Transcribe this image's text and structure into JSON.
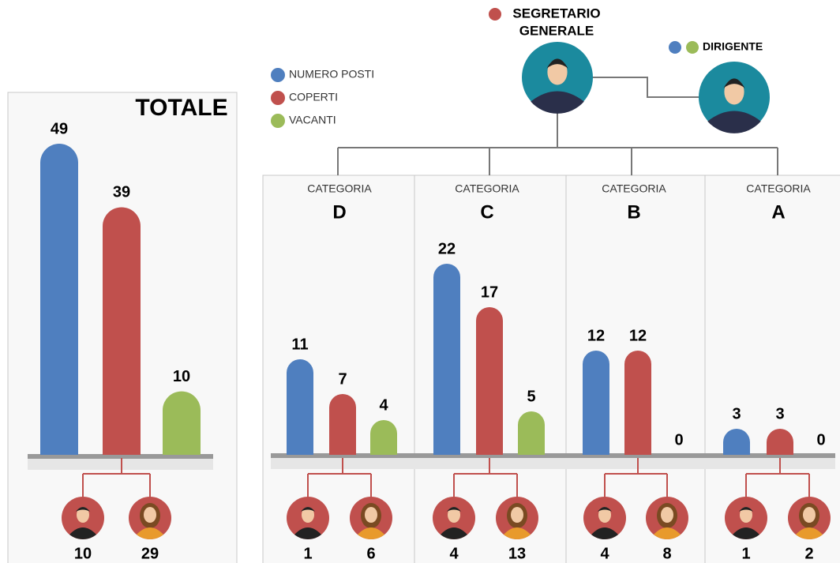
{
  "legend": [
    {
      "name": "NUMERO POSTI",
      "color": "#4f7fbf"
    },
    {
      "name": "COPERTI",
      "color": "#c0504d"
    },
    {
      "name": "VACANTI",
      "color": "#9bbb59"
    }
  ],
  "org": {
    "head": [
      "SEGRETARIO",
      "GENERALE"
    ],
    "head_colors": [
      "#c0504d"
    ],
    "deputy": "DIRIGENTE",
    "deputy_colors": [
      "#4f7fbf",
      "#9bbb59"
    ]
  },
  "chart_data": [
    {
      "type": "bar",
      "title": "TOTALE",
      "values": [
        49,
        39,
        10
      ],
      "men": 10,
      "women": 29
    },
    {
      "type": "bar",
      "label": "CATEGORIA",
      "title": "D",
      "values": [
        11,
        7,
        4
      ],
      "men": 1,
      "women": 6
    },
    {
      "type": "bar",
      "label": "CATEGORIA",
      "title": "C",
      "values": [
        22,
        17,
        5
      ],
      "men": 4,
      "women": 13
    },
    {
      "type": "bar",
      "label": "CATEGORIA",
      "title": "B",
      "values": [
        12,
        12,
        0
      ],
      "men": 4,
      "women": 8
    },
    {
      "type": "bar",
      "label": "CATEGORIA",
      "title": "A",
      "values": [
        3,
        3,
        0
      ],
      "men": 1,
      "women": 2
    }
  ]
}
